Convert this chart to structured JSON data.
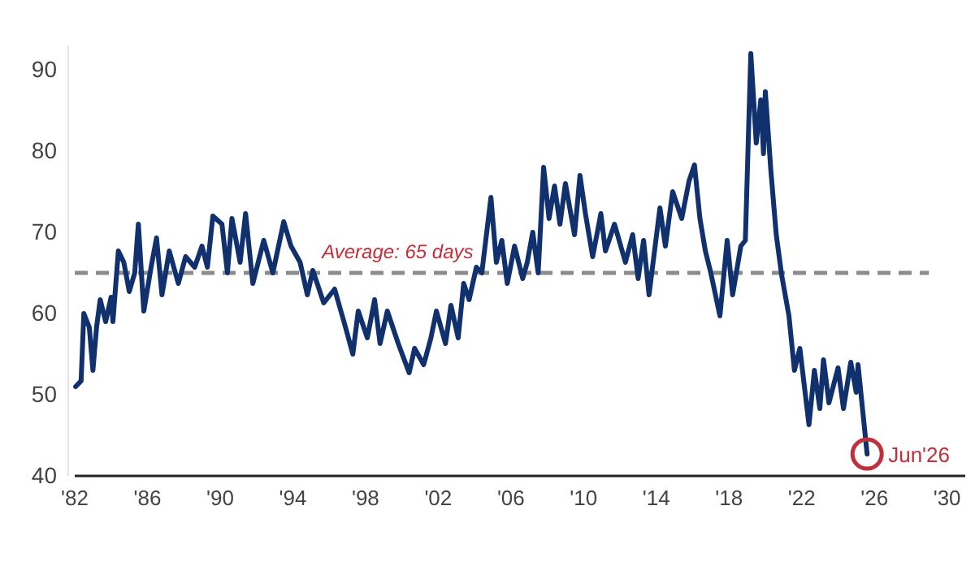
{
  "chart_data": {
    "type": "line",
    "x": [
      1982.05,
      1982.35,
      1982.5,
      1982.8,
      1983.0,
      1983.2,
      1983.4,
      1983.7,
      1984.0,
      1984.1,
      1984.4,
      1984.7,
      1985.0,
      1985.3,
      1985.5,
      1985.8,
      1986.2,
      1986.5,
      1986.8,
      1987.2,
      1987.7,
      1988.1,
      1988.6,
      1989.0,
      1989.3,
      1989.6,
      1990.1,
      1990.4,
      1990.65,
      1991.1,
      1991.4,
      1991.8,
      1992.4,
      1992.9,
      1993.5,
      1993.9,
      1994.4,
      1994.8,
      1995.1,
      1995.7,
      1996.3,
      1996.9,
      1997.3,
      1997.6,
      1998.1,
      1998.5,
      1998.8,
      1999.2,
      1999.8,
      2000.4,
      2000.7,
      2001.2,
      2001.6,
      2001.9,
      2002.4,
      2002.7,
      2003.1,
      2003.4,
      2003.7,
      2004.1,
      2004.4,
      2004.9,
      2005.2,
      2005.5,
      2005.8,
      2006.2,
      2006.65,
      2006.9,
      2007.2,
      2007.5,
      2007.8,
      2008.1,
      2008.4,
      2008.7,
      2009.0,
      2009.5,
      2009.8,
      2010.1,
      2010.5,
      2010.95,
      2011.2,
      2011.7,
      2012.3,
      2012.7,
      2013.0,
      2013.3,
      2013.6,
      2014.2,
      2014.5,
      2014.9,
      2015.4,
      2015.8,
      2016.1,
      2016.4,
      2016.7,
      2017.0,
      2017.5,
      2017.9,
      2018.2,
      2018.65,
      2018.9,
      2019.2,
      2019.5,
      2019.75,
      2019.9,
      2020.0,
      2020.3,
      2020.6,
      2020.9,
      2021.3,
      2021.6,
      2021.9,
      2022.4,
      2022.7,
      2023.0,
      2023.2,
      2023.5,
      2024.0,
      2024.3,
      2024.7,
      2025.0,
      2025.1,
      2025.6
    ],
    "series": [
      {
        "color": "#10306e",
        "values": [
          51,
          51.7,
          60,
          58.3,
          53,
          58.3,
          61.7,
          59,
          62,
          59,
          67.7,
          66.3,
          62.7,
          65,
          71,
          60.3,
          65.7,
          69.3,
          62.3,
          67.7,
          63.7,
          67,
          65.7,
          68.3,
          65.7,
          72,
          71,
          65,
          71.7,
          66.3,
          72.3,
          63.7,
          69,
          65,
          71.3,
          68.3,
          66.3,
          62.3,
          65.3,
          61.3,
          63,
          58.3,
          55,
          60.3,
          57,
          61.7,
          56.3,
          60.3,
          56.3,
          52.7,
          55.7,
          53.7,
          57,
          60.3,
          56.3,
          61,
          57,
          63.7,
          61.7,
          65.7,
          65,
          74.3,
          66.3,
          69,
          63.7,
          68.3,
          64.3,
          66.3,
          70,
          65,
          78,
          71.7,
          75.7,
          71,
          76,
          69.7,
          77,
          72.3,
          67,
          72.3,
          67.7,
          71,
          66.3,
          69.7,
          64.3,
          69,
          62.3,
          73,
          68.3,
          75,
          71.7,
          76.3,
          78.3,
          71.7,
          67.7,
          65,
          59.7,
          69,
          62.3,
          68.3,
          69,
          92,
          81,
          86.3,
          79.7,
          87.3,
          77.7,
          69.7,
          64.7,
          59.7,
          53,
          55.7,
          46.3,
          53,
          48.3,
          54.3,
          49,
          53.3,
          48.3,
          54,
          50.3,
          53.7,
          42.7
        ]
      }
    ],
    "xlim": [
      1982,
      2031
    ],
    "ylim": [
      40,
      93
    ],
    "xticks": [
      {
        "value": 1982,
        "label": "'82"
      },
      {
        "value": 1986,
        "label": "'86"
      },
      {
        "value": 1990,
        "label": "'90"
      },
      {
        "value": 1994,
        "label": "'94"
      },
      {
        "value": 1998,
        "label": "'98"
      },
      {
        "value": 2002,
        "label": "'02"
      },
      {
        "value": 2006,
        "label": "'06"
      },
      {
        "value": 2010,
        "label": "'10"
      },
      {
        "value": 2014,
        "label": "'14"
      },
      {
        "value": 2018,
        "label": "'18"
      },
      {
        "value": 2022,
        "label": "'22"
      },
      {
        "value": 2026,
        "label": "'26"
      },
      {
        "value": 2030,
        "label": "'30"
      }
    ],
    "yticks": [
      40,
      50,
      60,
      70,
      80,
      90
    ],
    "ref_lines": [
      {
        "axis": "y",
        "value": 65,
        "label": "Average: 65 days",
        "color": "#8c8c8c",
        "line_style": "dashed"
      }
    ],
    "annotations": [
      {
        "text": "Jun'26",
        "x": 2025.6,
        "y": 42.7
      }
    ],
    "grid": false
  }
}
